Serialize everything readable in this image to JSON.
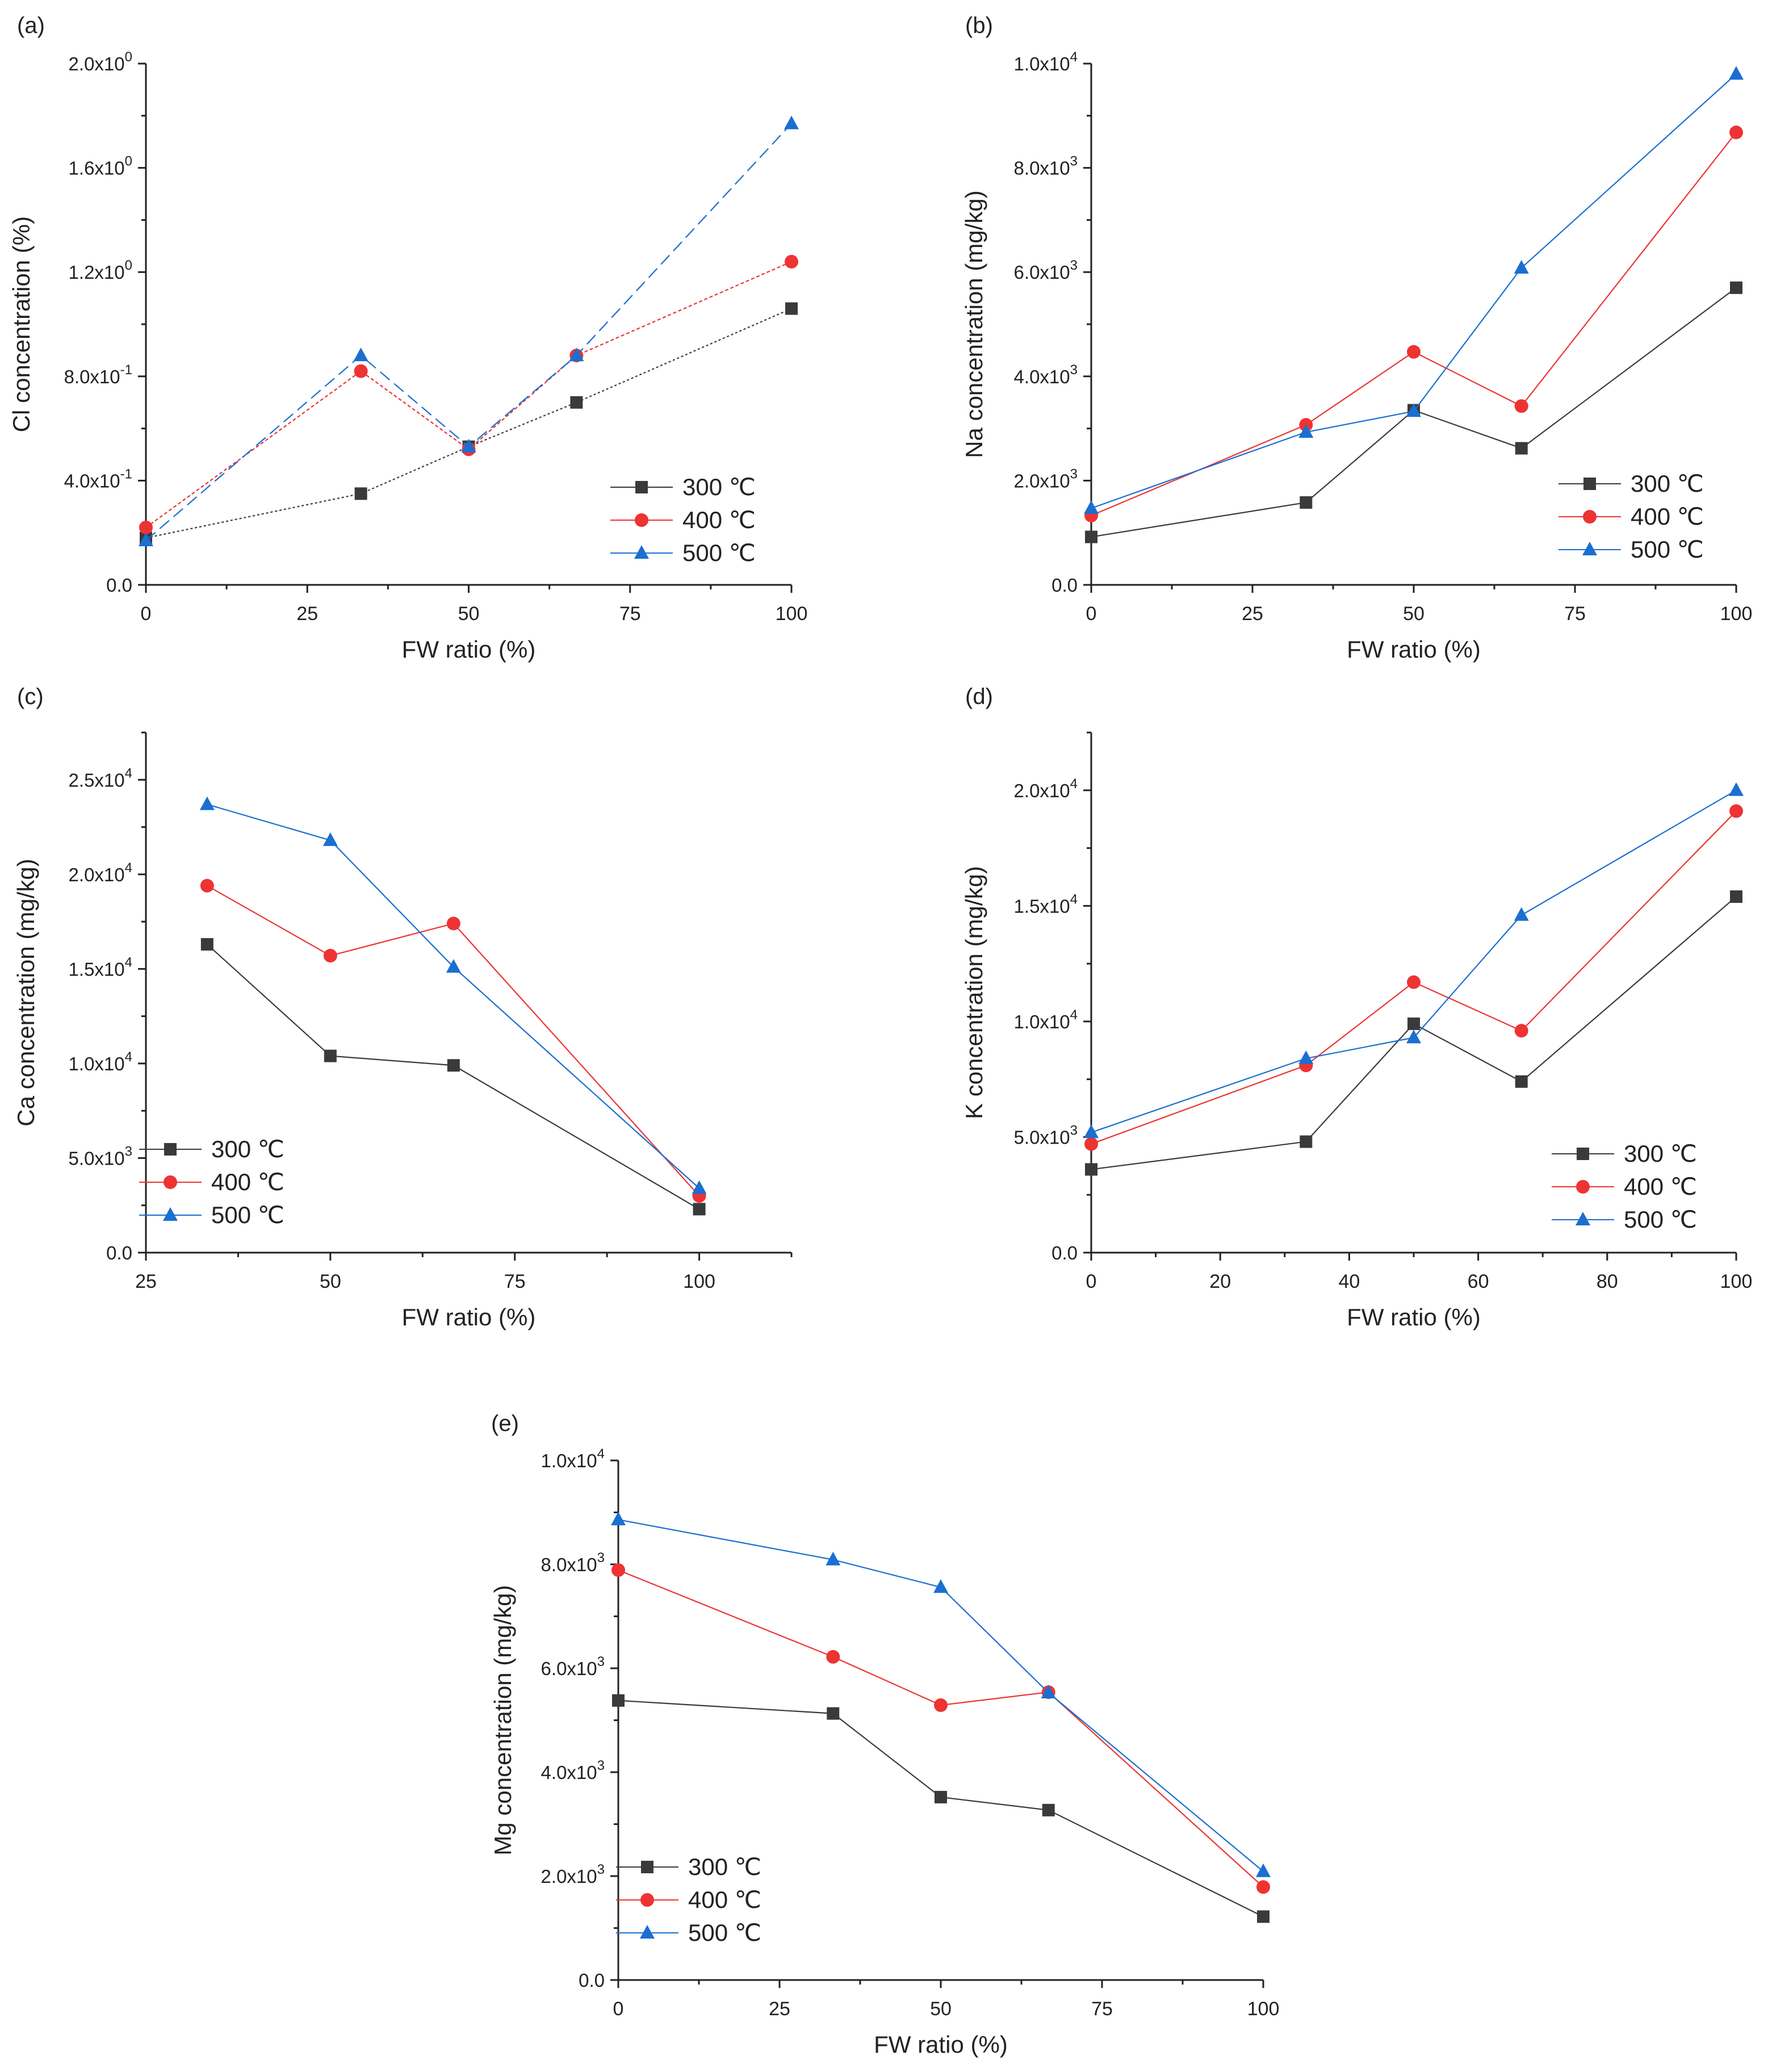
{
  "figure": {
    "charts": [
      {
        "panel_label": "(a)",
        "type": "line",
        "xlabel": "FW ratio (%)",
        "ylabel": "Cl concentration (%)",
        "xlim": [
          0,
          100
        ],
        "ylim": [
          0,
          2.0
        ],
        "xticks": [
          0,
          25,
          50,
          75,
          100
        ],
        "xtick_labels": [
          "0",
          "25",
          "50",
          "75",
          "100"
        ],
        "yticks": [
          0,
          0.4,
          0.8,
          1.2,
          1.6,
          2.0
        ],
        "ytick_labels": [
          {
            "mantissa": "0.0",
            "exp": ""
          },
          {
            "mantissa": "4.0x10",
            "exp": "-1"
          },
          {
            "mantissa": "8.0x10",
            "exp": "-1"
          },
          {
            "mantissa": "1.2x10",
            "exp": "0"
          },
          {
            "mantissa": "1.6x10",
            "exp": "0"
          },
          {
            "mantissa": "2.0x10",
            "exp": "0"
          }
        ],
        "legend_position": "bottom-right",
        "series": [
          {
            "name": "300 ℃",
            "x": [
              0,
              33.3,
              50,
              66.7,
              100
            ],
            "y": [
              0.18,
              0.35,
              0.53,
              0.7,
              1.06
            ]
          },
          {
            "name": "400 ℃",
            "x": [
              0,
              33.3,
              50,
              66.7,
              100
            ],
            "y": [
              0.22,
              0.82,
              0.52,
              0.88,
              1.24
            ]
          },
          {
            "name": "500 ℃",
            "x": [
              0,
              33.3,
              50,
              66.7,
              100
            ],
            "y": [
              0.17,
              0.88,
              0.53,
              0.88,
              1.77
            ]
          }
        ]
      },
      {
        "panel_label": "(b)",
        "type": "line",
        "xlabel": "FW ratio (%)",
        "ylabel": "Na concentration (mg/kg)",
        "xlim": [
          0,
          100
        ],
        "ylim": [
          0,
          10000
        ],
        "xticks": [
          0,
          25,
          50,
          75,
          100
        ],
        "xtick_labels": [
          "0",
          "25",
          "50",
          "75",
          "100"
        ],
        "yticks": [
          0,
          2000,
          4000,
          6000,
          8000,
          10000
        ],
        "ytick_labels": [
          {
            "mantissa": "0.0",
            "exp": ""
          },
          {
            "mantissa": "2.0x10",
            "exp": "3"
          },
          {
            "mantissa": "4.0x10",
            "exp": "3"
          },
          {
            "mantissa": "6.0x10",
            "exp": "3"
          },
          {
            "mantissa": "8.0x10",
            "exp": "3"
          },
          {
            "mantissa": "1.0x10",
            "exp": "4"
          }
        ],
        "legend_position": "bottom-right",
        "series": [
          {
            "name": "300 ℃",
            "x": [
              0,
              33.3,
              50,
              66.7,
              100
            ],
            "y": [
              920,
              1580,
              3350,
              2620,
              5700
            ]
          },
          {
            "name": "400 ℃",
            "x": [
              0,
              33.3,
              50,
              66.7,
              100
            ],
            "y": [
              1330,
              3070,
              4470,
              3430,
              8680
            ]
          },
          {
            "name": "500 ℃",
            "x": [
              0,
              33.3,
              50,
              66.7,
              100
            ],
            "y": [
              1470,
              2930,
              3330,
              6080,
              9800
            ]
          }
        ]
      },
      {
        "panel_label": "(c)",
        "type": "line",
        "xlabel": "FW ratio (%)",
        "ylabel": "Ca concentration (mg/kg)",
        "xlim": [
          25,
          112.5
        ],
        "ylim": [
          0,
          27500
        ],
        "xticks": [
          25,
          50,
          75,
          100
        ],
        "xtick_labels": [
          "25",
          "50",
          "75",
          "100"
        ],
        "yticks": [
          0,
          5000,
          10000,
          15000,
          20000,
          25000
        ],
        "ytick_labels": [
          {
            "mantissa": "0.0",
            "exp": ""
          },
          {
            "mantissa": "5.0x10",
            "exp": "3"
          },
          {
            "mantissa": "1.0x10",
            "exp": "4"
          },
          {
            "mantissa": "1.5x10",
            "exp": "4"
          },
          {
            "mantissa": "2.0x10",
            "exp": "4"
          },
          {
            "mantissa": "2.5x10",
            "exp": "4"
          }
        ],
        "legend_position": "bottom-left",
        "series": [
          {
            "name": "300 ℃",
            "x": [
              33.3,
              50,
              66.7,
              100
            ],
            "y": [
              16300,
              10400,
              9900,
              2300
            ]
          },
          {
            "name": "400 ℃",
            "x": [
              33.3,
              50,
              66.7,
              100
            ],
            "y": [
              19400,
              15700,
              17400,
              3000
            ]
          },
          {
            "name": "500 ℃",
            "x": [
              33.3,
              50,
              66.7,
              100
            ],
            "y": [
              23700,
              21800,
              15100,
              3400
            ]
          }
        ]
      },
      {
        "panel_label": "(d)",
        "type": "line",
        "xlabel": "FW ratio (%)",
        "ylabel": "K concentration (mg/kg)",
        "xlim": [
          0,
          100
        ],
        "ylim": [
          0,
          22500
        ],
        "xticks": [
          0,
          20,
          40,
          60,
          80,
          100
        ],
        "xtick_labels": [
          "0",
          "20",
          "40",
          "60",
          "80",
          "100"
        ],
        "yticks": [
          0,
          5000,
          10000,
          15000,
          20000
        ],
        "ytick_labels": [
          {
            "mantissa": "0.0",
            "exp": ""
          },
          {
            "mantissa": "5.0x10",
            "exp": "3"
          },
          {
            "mantissa": "1.0x10",
            "exp": "4"
          },
          {
            "mantissa": "1.5x10",
            "exp": "4"
          },
          {
            "mantissa": "2.0x10",
            "exp": "4"
          }
        ],
        "legend_position": "bottom-right",
        "series": [
          {
            "name": "300 ℃",
            "x": [
              0,
              33.3,
              50,
              66.7,
              100
            ],
            "y": [
              3600,
              4800,
              9900,
              7400,
              15400
            ]
          },
          {
            "name": "400 ℃",
            "x": [
              0,
              33.3,
              50,
              66.7,
              100
            ],
            "y": [
              4700,
              8100,
              11700,
              9600,
              19100
            ]
          },
          {
            "name": "500 ℃",
            "x": [
              0,
              33.3,
              50,
              66.7,
              100
            ],
            "y": [
              5200,
              8400,
              9300,
              14600,
              20000
            ]
          }
        ]
      },
      {
        "panel_label": "(e)",
        "type": "line",
        "xlabel": "FW ratio (%)",
        "ylabel": "Mg concentration (mg/kg)",
        "xlim": [
          0,
          100
        ],
        "ylim": [
          0,
          10000
        ],
        "xticks": [
          0,
          25,
          50,
          75,
          100
        ],
        "xtick_labels": [
          "0",
          "25",
          "50",
          "75",
          "100"
        ],
        "yticks": [
          0,
          2000,
          4000,
          6000,
          8000,
          10000
        ],
        "ytick_labels": [
          {
            "mantissa": "0.0",
            "exp": ""
          },
          {
            "mantissa": "2.0x10",
            "exp": "3"
          },
          {
            "mantissa": "4.0x10",
            "exp": "3"
          },
          {
            "mantissa": "6.0x10",
            "exp": "3"
          },
          {
            "mantissa": "8.0x10",
            "exp": "3"
          },
          {
            "mantissa": "1.0x10",
            "exp": "4"
          }
        ],
        "legend_position": "bottom-left",
        "series": [
          {
            "name": "300 ℃",
            "x": [
              0,
              33.3,
              50,
              66.7,
              100
            ],
            "y": [
              5380,
              5130,
              3520,
              3270,
              1220
            ]
          },
          {
            "name": "400 ℃",
            "x": [
              0,
              33.3,
              50,
              66.7,
              100
            ],
            "y": [
              7890,
              6220,
              5290,
              5540,
              1790
            ]
          },
          {
            "name": "500 ℃",
            "x": [
              0,
              33.3,
              50,
              66.7,
              100
            ],
            "y": [
              8860,
              8090,
              7560,
              5530,
              2090
            ]
          }
        ]
      }
    ],
    "series_styles": [
      {
        "color": "#3a3a3a",
        "marker": "square"
      },
      {
        "color": "#ee3333",
        "marker": "circle"
      },
      {
        "color": "#1a6fd0",
        "marker": "triangle"
      }
    ]
  }
}
